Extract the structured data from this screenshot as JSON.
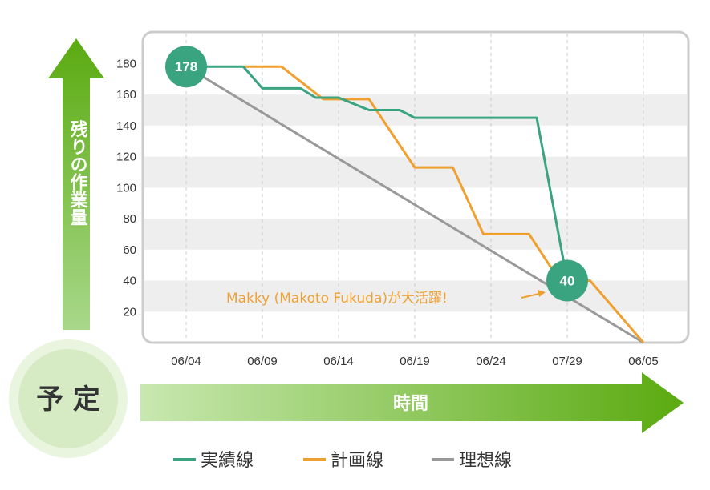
{
  "chart_data": {
    "type": "line",
    "ylim": [
      0,
      190
    ],
    "y_ticks": [
      20,
      40,
      60,
      80,
      100,
      120,
      140,
      160,
      180
    ],
    "x_ticks": [
      "06/04",
      "06/09",
      "06/14",
      "06/19",
      "06/24",
      "07/29",
      "06/05"
    ],
    "ylabel": "残りの作業量",
    "xlabel": "時間",
    "grid": "horizontal bands",
    "legend_position": "bottom",
    "series": [
      {
        "name": "実績線",
        "color": "#3aa37f",
        "x": [
          0,
          0.75,
          1.0,
          1.5,
          1.7,
          2.0,
          2.4,
          2.8,
          3.0,
          4.6,
          5.0
        ],
        "y": [
          178,
          178,
          164,
          164,
          158,
          158,
          150,
          150,
          145,
          145,
          40
        ]
      },
      {
        "name": "計画線",
        "color": "#f0a030",
        "x": [
          0.75,
          1.25,
          1.8,
          2.4,
          3.0,
          3.5,
          3.9,
          4.5,
          4.9,
          5.3,
          6.0
        ],
        "y": [
          178,
          178,
          157,
          157,
          113,
          113,
          70,
          70,
          40,
          40,
          0
        ]
      },
      {
        "name": "理想線",
        "color": "#999999",
        "x": [
          0,
          6.0
        ],
        "y": [
          178,
          0
        ]
      }
    ],
    "markers": [
      {
        "label": "178",
        "x": 0,
        "y": 178,
        "color": "#3aa37f"
      },
      {
        "label": "40",
        "x": 5.0,
        "y": 40,
        "color": "#3aa37f"
      }
    ],
    "annotation": {
      "text": "Makky (Makoto Fukuda)が大活躍!",
      "color": "#f0a030"
    }
  },
  "badge": {
    "label": "予 定"
  }
}
